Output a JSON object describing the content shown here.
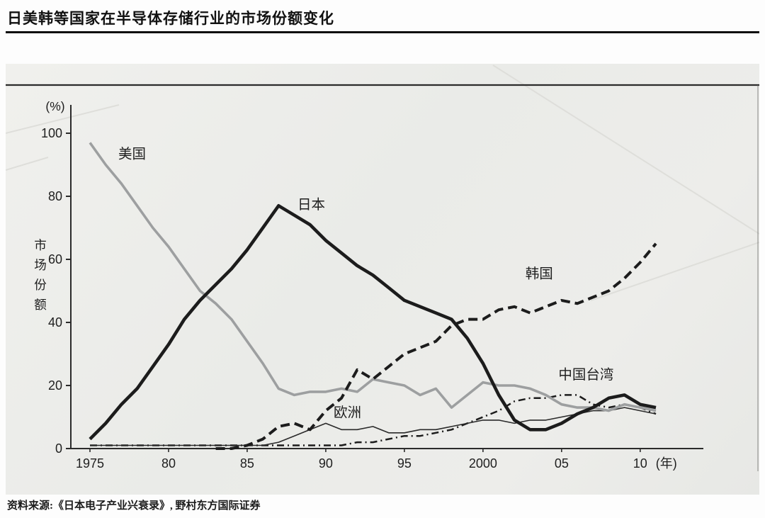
{
  "header": {
    "title": "日美韩等国家在半导体存储行业的市场份额变化"
  },
  "footer": {
    "source": "资料来源:《日本电子产业兴衰录》, 野村东方国际证券"
  },
  "chart_data": {
    "type": "line",
    "title": "日美韩等国家在半导体存储行业的市场份额变化",
    "ylabel": "市场份额",
    "y_unit_label": "(%)",
    "x_unit_label": "(年)",
    "ylim": [
      0,
      100
    ],
    "yticks": [
      0,
      20,
      40,
      60,
      80,
      100
    ],
    "x_range": [
      1975,
      2011
    ],
    "xticks": [
      {
        "x": 1975,
        "label": "1975"
      },
      {
        "x": 1980,
        "label": "80"
      },
      {
        "x": 1985,
        "label": "85"
      },
      {
        "x": 1990,
        "label": "90"
      },
      {
        "x": 1995,
        "label": "95"
      },
      {
        "x": 2000,
        "label": "2000"
      },
      {
        "x": 2005,
        "label": "05"
      },
      {
        "x": 2010,
        "label": "10"
      }
    ],
    "grid": false,
    "legend_position": "inline-labels",
    "series": [
      {
        "name": "中国台湾",
        "color": "#1c1c1c",
        "width": 2.5,
        "dash": "10 5 2 5",
        "points": [
          [
            1975,
            1
          ],
          [
            1977,
            1
          ],
          [
            1979,
            1
          ],
          [
            1981,
            1
          ],
          [
            1983,
            1
          ],
          [
            1985,
            1
          ],
          [
            1987,
            1
          ],
          [
            1989,
            1
          ],
          [
            1991,
            1
          ],
          [
            1992,
            2
          ],
          [
            1993,
            2
          ],
          [
            1994,
            3
          ],
          [
            1995,
            4
          ],
          [
            1996,
            4
          ],
          [
            1997,
            5
          ],
          [
            1998,
            6
          ],
          [
            1999,
            8
          ],
          [
            2000,
            10
          ],
          [
            2001,
            12
          ],
          [
            2002,
            15
          ],
          [
            2003,
            16
          ],
          [
            2004,
            16
          ],
          [
            2005,
            17
          ],
          [
            2006,
            17
          ],
          [
            2007,
            14
          ],
          [
            2008,
            13
          ],
          [
            2009,
            14
          ],
          [
            2010,
            13
          ],
          [
            2011,
            11
          ]
        ]
      },
      {
        "name": "欧洲",
        "color": "#2a2a2a",
        "width": 1.6,
        "dash": null,
        "points": [
          [
            1975,
            1
          ],
          [
            1978,
            1
          ],
          [
            1981,
            1
          ],
          [
            1984,
            1
          ],
          [
            1986,
            1
          ],
          [
            1987,
            2
          ],
          [
            1988,
            4
          ],
          [
            1989,
            6
          ],
          [
            1990,
            8
          ],
          [
            1991,
            6
          ],
          [
            1992,
            6
          ],
          [
            1993,
            7
          ],
          [
            1994,
            5
          ],
          [
            1995,
            5
          ],
          [
            1996,
            6
          ],
          [
            1997,
            6
          ],
          [
            1998,
            7
          ],
          [
            1999,
            8
          ],
          [
            2000,
            9
          ],
          [
            2001,
            9
          ],
          [
            2002,
            8
          ],
          [
            2003,
            9
          ],
          [
            2004,
            9
          ],
          [
            2005,
            10
          ],
          [
            2006,
            11
          ],
          [
            2007,
            12
          ],
          [
            2008,
            12
          ],
          [
            2009,
            13
          ],
          [
            2010,
            12
          ],
          [
            2011,
            11
          ]
        ]
      },
      {
        "name": "美国",
        "color": "#9d9fa0",
        "width": 3.6,
        "dash": null,
        "points": [
          [
            1975,
            97
          ],
          [
            1976,
            90
          ],
          [
            1977,
            84
          ],
          [
            1978,
            77
          ],
          [
            1979,
            70
          ],
          [
            1980,
            64
          ],
          [
            1981,
            57
          ],
          [
            1982,
            50
          ],
          [
            1983,
            46
          ],
          [
            1984,
            41
          ],
          [
            1985,
            34
          ],
          [
            1986,
            27
          ],
          [
            1987,
            19
          ],
          [
            1988,
            17
          ],
          [
            1989,
            18
          ],
          [
            1990,
            18
          ],
          [
            1991,
            19
          ],
          [
            1992,
            18
          ],
          [
            1993,
            22
          ],
          [
            1994,
            21
          ],
          [
            1995,
            20
          ],
          [
            1996,
            17
          ],
          [
            1997,
            19
          ],
          [
            1998,
            13
          ],
          [
            1999,
            17
          ],
          [
            2000,
            21
          ],
          [
            2001,
            20
          ],
          [
            2002,
            20
          ],
          [
            2003,
            19
          ],
          [
            2004,
            17
          ],
          [
            2005,
            14
          ],
          [
            2006,
            13
          ],
          [
            2007,
            13
          ],
          [
            2008,
            12
          ],
          [
            2009,
            14
          ],
          [
            2010,
            13
          ],
          [
            2011,
            12
          ]
        ]
      },
      {
        "name": "韩国",
        "color": "#1c1c1c",
        "width": 4.0,
        "dash": "13 7",
        "points": [
          [
            1983,
            0
          ],
          [
            1984,
            0
          ],
          [
            1985,
            1
          ],
          [
            1986,
            3
          ],
          [
            1987,
            7
          ],
          [
            1988,
            8
          ],
          [
            1989,
            6
          ],
          [
            1990,
            12
          ],
          [
            1991,
            16
          ],
          [
            1992,
            25
          ],
          [
            1993,
            22
          ],
          [
            1994,
            26
          ],
          [
            1995,
            30
          ],
          [
            1996,
            32
          ],
          [
            1997,
            34
          ],
          [
            1998,
            39
          ],
          [
            1999,
            41
          ],
          [
            2000,
            41
          ],
          [
            2001,
            44
          ],
          [
            2002,
            45
          ],
          [
            2003,
            43
          ],
          [
            2004,
            45
          ],
          [
            2005,
            47
          ],
          [
            2006,
            46
          ],
          [
            2007,
            48
          ],
          [
            2008,
            50
          ],
          [
            2009,
            54
          ],
          [
            2010,
            59
          ],
          [
            2011,
            65
          ]
        ]
      },
      {
        "name": "日本",
        "color": "#1c1c1c",
        "width": 4.6,
        "dash": null,
        "points": [
          [
            1975,
            3
          ],
          [
            1976,
            8
          ],
          [
            1977,
            14
          ],
          [
            1978,
            19
          ],
          [
            1979,
            26
          ],
          [
            1980,
            33
          ],
          [
            1981,
            41
          ],
          [
            1982,
            47
          ],
          [
            1983,
            52
          ],
          [
            1984,
            57
          ],
          [
            1985,
            63
          ],
          [
            1986,
            70
          ],
          [
            1987,
            77
          ],
          [
            1988,
            74
          ],
          [
            1989,
            71
          ],
          [
            1990,
            66
          ],
          [
            1991,
            62
          ],
          [
            1992,
            58
          ],
          [
            1993,
            55
          ],
          [
            1994,
            51
          ],
          [
            1995,
            47
          ],
          [
            1996,
            45
          ],
          [
            1997,
            43
          ],
          [
            1998,
            41
          ],
          [
            1999,
            35
          ],
          [
            2000,
            27
          ],
          [
            2001,
            17
          ],
          [
            2002,
            9
          ],
          [
            2003,
            6
          ],
          [
            2004,
            6
          ],
          [
            2005,
            8
          ],
          [
            2006,
            11
          ],
          [
            2007,
            13
          ],
          [
            2008,
            16
          ],
          [
            2009,
            17
          ],
          [
            2010,
            14
          ],
          [
            2011,
            13
          ]
        ]
      }
    ],
    "annotations": [
      {
        "text": "美国",
        "x": 1976.8,
        "y": 92
      },
      {
        "text": "日本",
        "x": 1988.2,
        "y": 76
      },
      {
        "text": "韩国",
        "x": 2002.7,
        "y": 54
      },
      {
        "text": "中国台湾",
        "x": 2004.8,
        "y": 22
      },
      {
        "text": "欧洲",
        "x": 1990.5,
        "y": 10
      }
    ]
  }
}
